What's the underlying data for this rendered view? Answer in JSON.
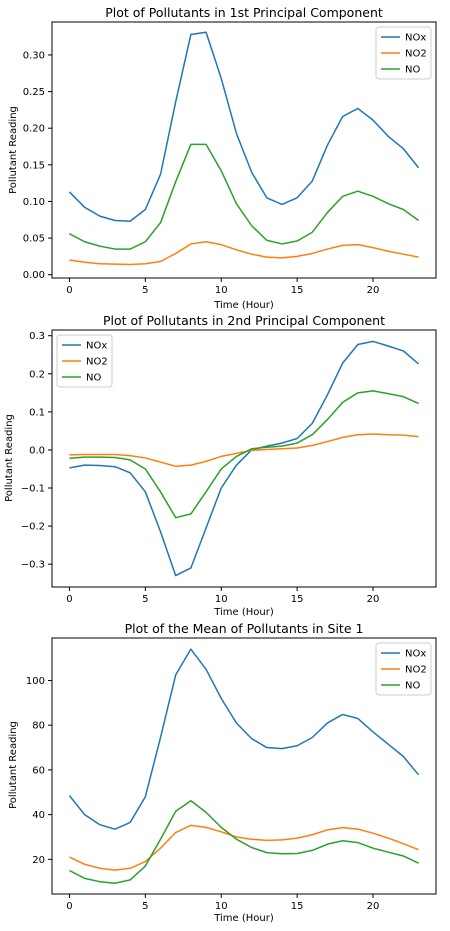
{
  "colors": {
    "NOx": "#1f77b4",
    "NO2": "#ff7f0e",
    "NO": "#2ca02c"
  },
  "chart_data": [
    {
      "type": "line",
      "title": "Plot of Pollutants in 1st Principal Component",
      "xlabel": "Time (Hour)",
      "ylabel": "Pollutant Reading",
      "x": [
        0,
        1,
        2,
        3,
        4,
        5,
        6,
        7,
        8,
        9,
        10,
        11,
        12,
        13,
        14,
        15,
        16,
        17,
        18,
        19,
        20,
        21,
        22,
        23
      ],
      "xlim": [
        -1.15,
        24.15
      ],
      "ylim": [
        -0.0045,
        0.345
      ],
      "xticks": [
        0,
        5,
        10,
        15,
        20
      ],
      "yticks": [
        0.0,
        0.05,
        0.1,
        0.15,
        0.2,
        0.25,
        0.3
      ],
      "ytick_labels": [
        "0.00",
        "0.05",
        "0.10",
        "0.15",
        "0.20",
        "0.25",
        "0.30"
      ],
      "legend_loc": "upper right",
      "series": [
        {
          "name": "NOx",
          "values": [
            0.113,
            0.092,
            0.08,
            0.074,
            0.073,
            0.089,
            0.137,
            0.236,
            0.328,
            0.331,
            0.268,
            0.193,
            0.14,
            0.105,
            0.096,
            0.105,
            0.128,
            0.177,
            0.216,
            0.227,
            0.211,
            0.189,
            0.172,
            0.146
          ]
        },
        {
          "name": "NO2",
          "values": [
            0.02,
            0.017,
            0.015,
            0.0145,
            0.014,
            0.015,
            0.018,
            0.029,
            0.042,
            0.045,
            0.041,
            0.034,
            0.028,
            0.024,
            0.023,
            0.025,
            0.029,
            0.035,
            0.04,
            0.041,
            0.037,
            0.032,
            0.028,
            0.024
          ]
        },
        {
          "name": "NO",
          "values": [
            0.056,
            0.045,
            0.039,
            0.035,
            0.035,
            0.045,
            0.071,
            0.127,
            0.178,
            0.178,
            0.142,
            0.097,
            0.067,
            0.047,
            0.042,
            0.046,
            0.058,
            0.085,
            0.107,
            0.114,
            0.107,
            0.097,
            0.089,
            0.074
          ]
        }
      ]
    },
    {
      "type": "line",
      "title": "Plot of Pollutants in 2nd Principal Component",
      "xlabel": "Time (Hour)",
      "ylabel": "Pollutant Reading",
      "x": [
        0,
        1,
        2,
        3,
        4,
        5,
        6,
        7,
        8,
        9,
        10,
        11,
        12,
        13,
        14,
        15,
        16,
        17,
        18,
        19,
        20,
        21,
        22,
        23
      ],
      "xlim": [
        -1.15,
        24.15
      ],
      "ylim": [
        -0.36,
        0.315
      ],
      "xticks": [
        0,
        5,
        10,
        15,
        20
      ],
      "yticks": [
        -0.3,
        -0.2,
        -0.1,
        0.0,
        0.1,
        0.2,
        0.3
      ],
      "ytick_labels": [
        "−0.3",
        "−0.2",
        "−0.1",
        "0.0",
        "0.1",
        "0.2",
        "0.3"
      ],
      "legend_loc": "upper left",
      "series": [
        {
          "name": "NOx",
          "values": [
            -0.047,
            -0.04,
            -0.041,
            -0.044,
            -0.06,
            -0.11,
            -0.215,
            -0.33,
            -0.31,
            -0.205,
            -0.1,
            -0.04,
            0.0,
            0.01,
            0.018,
            0.03,
            0.07,
            0.145,
            0.228,
            0.277,
            0.285,
            0.273,
            0.26,
            0.226
          ]
        },
        {
          "name": "NO2",
          "values": [
            -0.013,
            -0.012,
            -0.012,
            -0.012,
            -0.015,
            -0.021,
            -0.032,
            -0.043,
            -0.04,
            -0.03,
            -0.017,
            -0.009,
            -0.001,
            0.001,
            0.003,
            0.005,
            0.012,
            0.022,
            0.033,
            0.04,
            0.042,
            0.04,
            0.039,
            0.035
          ]
        },
        {
          "name": "NO",
          "values": [
            -0.022,
            -0.019,
            -0.019,
            -0.02,
            -0.026,
            -0.05,
            -0.11,
            -0.178,
            -0.168,
            -0.11,
            -0.05,
            -0.017,
            0.003,
            0.007,
            0.01,
            0.018,
            0.04,
            0.08,
            0.125,
            0.15,
            0.155,
            0.148,
            0.14,
            0.122
          ]
        }
      ]
    },
    {
      "type": "line",
      "title": "Plot of the Mean of Pollutants in Site 1",
      "xlabel": "Time (Hour)",
      "ylabel": "Pollutant Reading",
      "x": [
        0,
        1,
        2,
        3,
        4,
        5,
        6,
        7,
        8,
        9,
        10,
        11,
        12,
        13,
        14,
        15,
        16,
        17,
        18,
        19,
        20,
        21,
        22,
        23
      ],
      "xlim": [
        -1.15,
        24.15
      ],
      "ylim": [
        4.5,
        119
      ],
      "xticks": [
        0,
        5,
        10,
        15,
        20
      ],
      "yticks": [
        20,
        40,
        60,
        80,
        100
      ],
      "ytick_labels": [
        "20",
        "40",
        "60",
        "80",
        "100"
      ],
      "legend_loc": "upper right",
      "series": [
        {
          "name": "NOx",
          "values": [
            48.5,
            40.0,
            35.5,
            33.5,
            36.5,
            48.0,
            74.5,
            102.5,
            114.0,
            105.0,
            92.0,
            81.0,
            74.0,
            70.0,
            69.5,
            70.8,
            74.5,
            81.0,
            84.8,
            83.0,
            77.0,
            71.5,
            66.0,
            57.8
          ]
        },
        {
          "name": "NO2",
          "values": [
            21.0,
            17.8,
            16.0,
            15.2,
            16.0,
            19.0,
            25.0,
            32.0,
            35.2,
            34.3,
            32.3,
            30.0,
            29.0,
            28.5,
            28.7,
            29.5,
            31.0,
            33.2,
            34.2,
            33.5,
            31.7,
            29.5,
            27.0,
            24.3
          ]
        },
        {
          "name": "NO",
          "values": [
            15.0,
            11.5,
            10.0,
            9.3,
            10.8,
            17.0,
            29.0,
            41.5,
            46.2,
            41.0,
            34.3,
            29.0,
            25.3,
            23.0,
            22.5,
            22.6,
            24.0,
            26.8,
            28.3,
            27.5,
            25.0,
            23.2,
            21.5,
            18.3
          ]
        }
      ]
    }
  ]
}
